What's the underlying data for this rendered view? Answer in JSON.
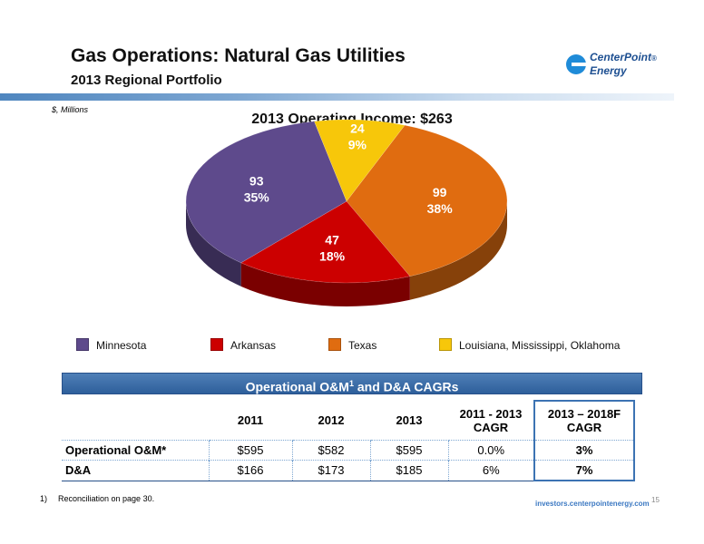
{
  "header": {
    "title": "Gas Operations: Natural Gas Utilities",
    "subtitle": "2013 Regional Portfolio",
    "logo_line1": "CenterPoint",
    "logo_line2": "Energy",
    "logo_mark": "®"
  },
  "units": "$, Millions",
  "chart_data": {
    "type": "pie",
    "title": "2013 Operating Income: $263",
    "slices": [
      {
        "name": "Minnesota",
        "value": 93,
        "percent": "35%",
        "color": "#5e4a8c"
      },
      {
        "name": "Arkansas",
        "value": 47,
        "percent": "18%",
        "color": "#cc0000"
      },
      {
        "name": "Texas",
        "value": 99,
        "percent": "38%",
        "color": "#e06c10"
      },
      {
        "name": "Louisiana, Mississippi, Oklahoma",
        "value": 24,
        "percent": "9%",
        "color": "#f7c70a"
      }
    ],
    "legend_position": "bottom"
  },
  "table": {
    "banner_main": "Operational O&M",
    "banner_sup": "1",
    "banner_rest": " and D&A CAGRs",
    "columns": [
      "2011",
      "2012",
      "2013",
      "2011 - 2013",
      "2013 – 2018F"
    ],
    "column_sub": [
      "",
      "",
      "",
      "CAGR",
      "CAGR"
    ],
    "rows": [
      {
        "label": "Operational O&M*",
        "values": [
          "$595",
          "$582",
          "$595",
          "0.0%",
          "3%"
        ]
      },
      {
        "label": "D&A",
        "values": [
          "$166",
          "$173",
          "$185",
          "6%",
          "7%"
        ]
      }
    ]
  },
  "footer": {
    "footnote_num": "1)",
    "footnote_text": "Reconciliation on page 30.",
    "url": "investors.centerpointenergy.com",
    "page": "15"
  }
}
